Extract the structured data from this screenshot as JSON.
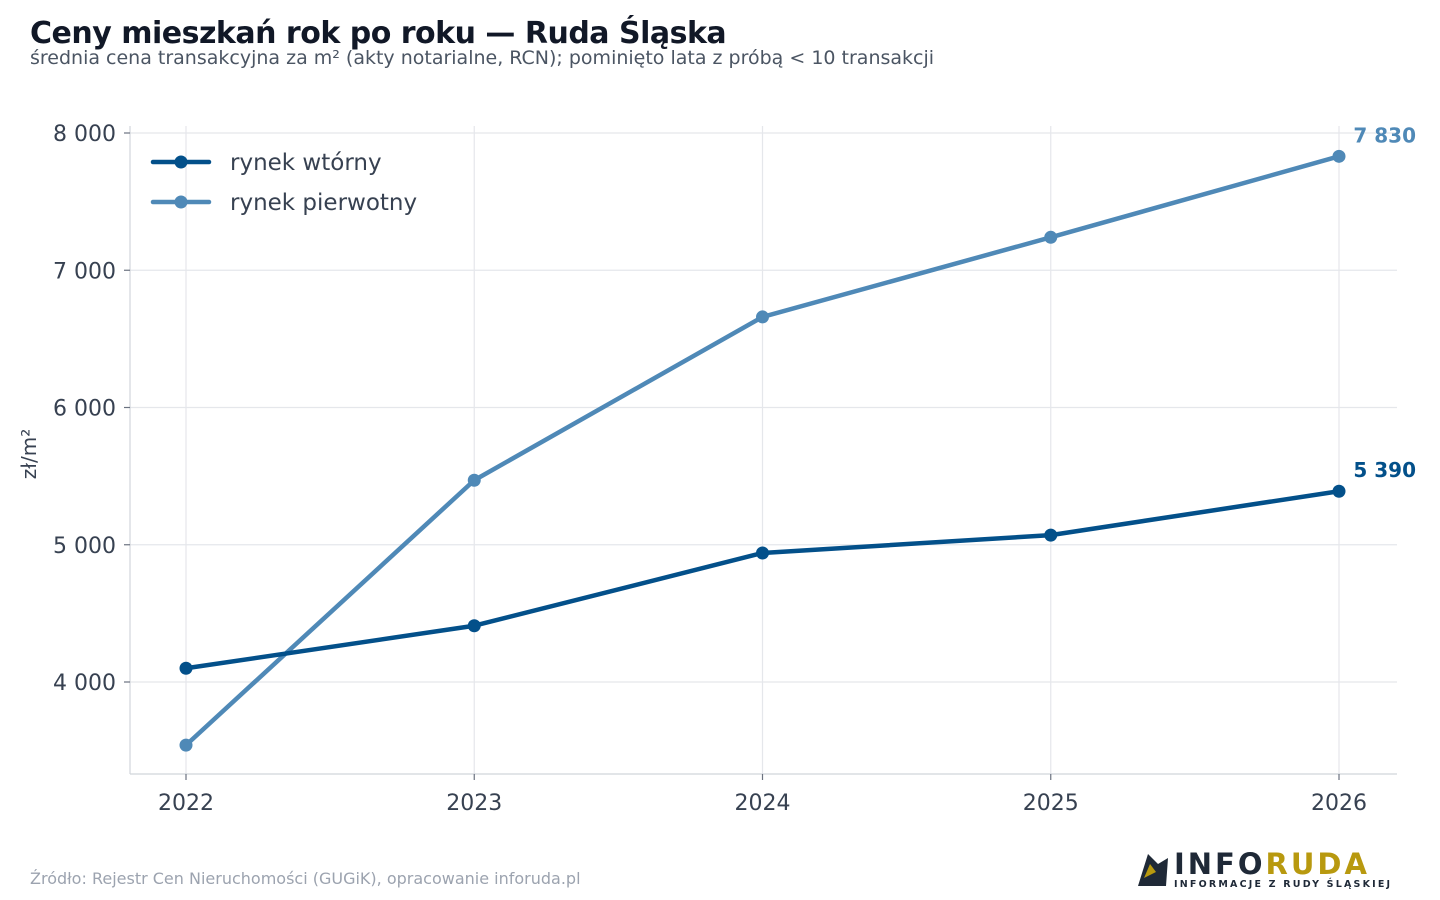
{
  "header": {
    "title": "Ceny mieszkań rok po roku — Ruda Śląska",
    "subtitle": "średnia cena transakcyjna za m² (akty notarialne, RCN); pominięto lata z próbą < 10 transakcji"
  },
  "footer": {
    "source": "Źródło: Rejestr Cen Nieruchomości (GUGiK), opracowanie inforuda.pl"
  },
  "logo": {
    "word_part1": "INFO",
    "word_part2": "RUDA",
    "tagline": "INFORMACJE Z RUDY ŚLĄSKIEJ"
  },
  "chart_data": {
    "type": "line",
    "title": "Ceny mieszkań rok po roku — Ruda Śląska",
    "subtitle": "średnia cena transakcyjna za m² (akty notarialne, RCN); pominięto lata z próbą < 10 transakcji",
    "xlabel": "",
    "ylabel": "zł/m²",
    "x": [
      2022,
      2023,
      2024,
      2025,
      2026
    ],
    "x_tick_labels": [
      "2022",
      "2023",
      "2024",
      "2025",
      "2026"
    ],
    "ylim": [
      3330,
      8050
    ],
    "y_ticks": [
      4000,
      5000,
      6000,
      7000,
      8000
    ],
    "y_tick_labels": [
      "4 000",
      "5 000",
      "6 000",
      "7 000",
      "8 000"
    ],
    "grid": true,
    "legend_position": "top-left",
    "series": [
      {
        "name": "rynek wtórny",
        "color": "#03508a",
        "values": [
          4100,
          4410,
          4940,
          5070,
          5390
        ],
        "end_label": "5 390"
      },
      {
        "name": "rynek pierwotny",
        "color": "#4f89b7",
        "values": [
          3540,
          5470,
          6660,
          7240,
          7830
        ],
        "end_label": "7 830"
      }
    ]
  }
}
